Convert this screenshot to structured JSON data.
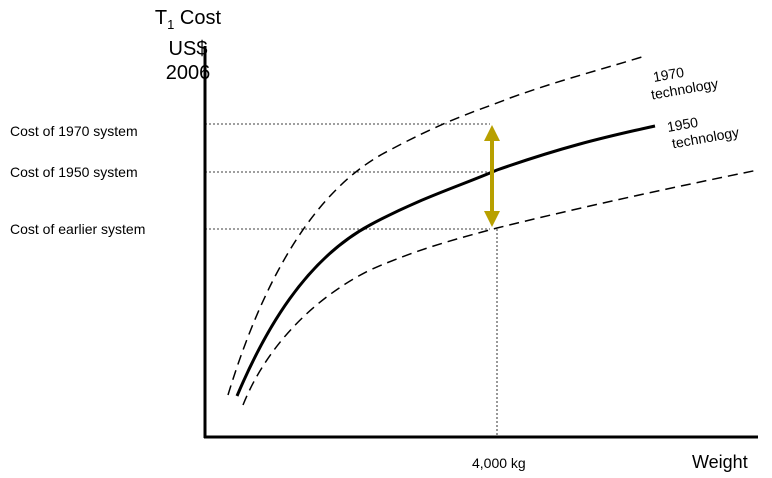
{
  "y_axis": {
    "line1": "T",
    "sub": "1",
    "line1b": " Cost",
    "line2": "US$",
    "line3": "2006"
  },
  "x_axis": {
    "label": "Weight",
    "tick": "4,000 kg"
  },
  "levels": [
    {
      "key": "c1970",
      "label": "Cost of 1970 system"
    },
    {
      "key": "c1950",
      "label": "Cost of 1950 system"
    },
    {
      "key": "cearly",
      "label": "Cost of earlier system"
    }
  ],
  "curves": [
    {
      "key": "t1970",
      "label_line1": "1970",
      "label_line2": "technology",
      "style": "dashed"
    },
    {
      "key": "t1950",
      "label_line1": "1950",
      "label_line2": "technology",
      "style": "solid"
    },
    {
      "key": "tearly",
      "style": "dashed"
    }
  ],
  "arrow_color": "#b8a000"
}
